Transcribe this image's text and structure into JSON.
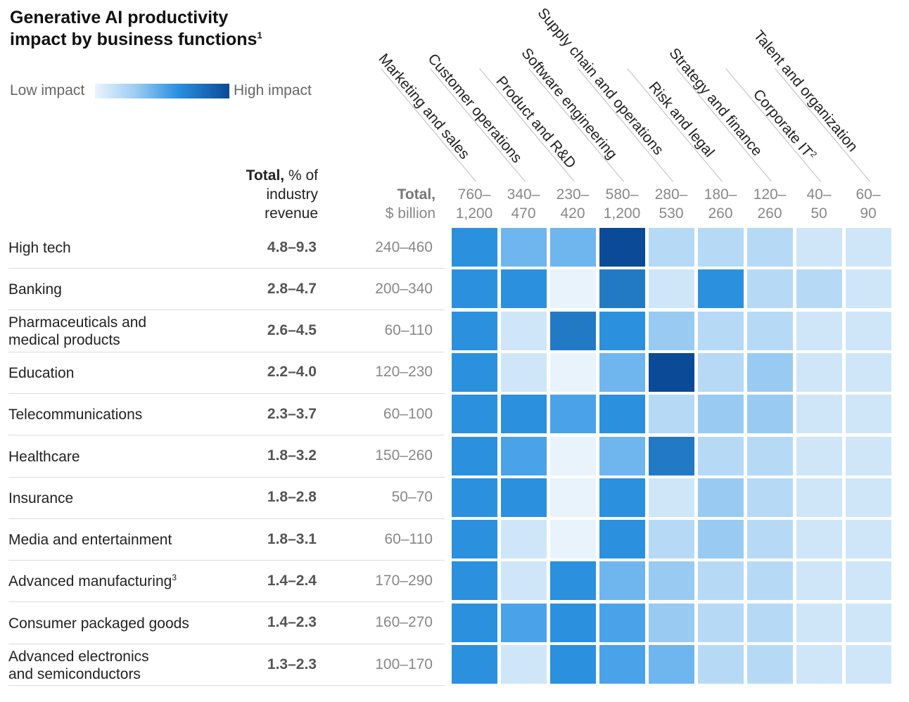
{
  "title": {
    "line1": "Generative AI productivity",
    "line2": "impact by business functions",
    "footnote": "1"
  },
  "legend": {
    "low": "Low impact",
    "high": "High impact"
  },
  "headers": {
    "pct_bold": "Total,",
    "pct_rest": "% of",
    "pct_line2": "industry",
    "pct_line3": "revenue",
    "bil_bold": "Total,",
    "bil_line2": "$ billion"
  },
  "colors": {
    "l1": "#e8f3fc",
    "l2": "#cfe6f8",
    "l3": "#b6daf5",
    "l4": "#99cbf2",
    "l5": "#6fb5ee",
    "l6": "#4aa3e8",
    "l7": "#2b90de",
    "l8": "#237ac4",
    "l9": "#0b4a96"
  },
  "chart_data": {
    "type": "heatmap",
    "title": "Generative AI productivity impact by business functions",
    "legend": [
      "Low impact",
      "High impact"
    ],
    "columns": [
      {
        "name": "Marketing and sales",
        "total": [
          "760–",
          "1,200"
        ]
      },
      {
        "name": "Customer operations",
        "total": [
          "340–",
          "470"
        ]
      },
      {
        "name": "Product and R&D",
        "total": [
          "230–",
          "420"
        ]
      },
      {
        "name": "Software engineering",
        "total": [
          "580–",
          "1,200"
        ]
      },
      {
        "name": "Supply chain and operations",
        "total": [
          "280–",
          "530"
        ]
      },
      {
        "name": "Risk and legal",
        "total": [
          "180–",
          "260"
        ]
      },
      {
        "name": "Strategy and finance",
        "total": [
          "120–",
          "260"
        ]
      },
      {
        "name": "Corporate IT",
        "sup": "2",
        "total": [
          "40–",
          "50"
        ]
      },
      {
        "name": "Talent and organization",
        "total": [
          "60–",
          "90"
        ]
      }
    ],
    "rows": [
      {
        "name": [
          "High tech"
        ],
        "pct": "4.8–9.3",
        "bil": "240–460",
        "levels": [
          7,
          5,
          5,
          9,
          3,
          3,
          3,
          2,
          2
        ]
      },
      {
        "name": [
          "Banking"
        ],
        "pct": "2.8–4.7",
        "bil": "200–340",
        "levels": [
          7,
          7,
          1,
          8,
          2,
          7,
          3,
          3,
          2
        ]
      },
      {
        "name": [
          "Pharmaceuticals and",
          "medical products"
        ],
        "pct": "2.6–4.5",
        "bil": "60–110",
        "levels": [
          7,
          2,
          8,
          7,
          4,
          3,
          3,
          2,
          2
        ]
      },
      {
        "name": [
          "Education"
        ],
        "pct": "2.2–4.0",
        "bil": "120–230",
        "levels": [
          7,
          2,
          1,
          5,
          9,
          3,
          4,
          2,
          2
        ]
      },
      {
        "name": [
          "Telecommunications"
        ],
        "pct": "2.3–3.7",
        "bil": "60–100",
        "levels": [
          7,
          7,
          6,
          7,
          3,
          4,
          4,
          2,
          2
        ]
      },
      {
        "name": [
          "Healthcare"
        ],
        "pct": "1.8–3.2",
        "bil": "150–260",
        "levels": [
          7,
          6,
          1,
          5,
          8,
          3,
          3,
          2,
          2
        ]
      },
      {
        "name": [
          "Insurance"
        ],
        "pct": "1.8–2.8",
        "bil": "50–70",
        "levels": [
          7,
          7,
          1,
          7,
          2,
          4,
          3,
          2,
          2
        ]
      },
      {
        "name": [
          "Media and entertainment"
        ],
        "pct": "1.8–3.1",
        "bil": "60–110",
        "levels": [
          7,
          2,
          1,
          7,
          3,
          4,
          3,
          2,
          2
        ]
      },
      {
        "name": [
          "Advanced manufacturing"
        ],
        "sup": "3",
        "pct": "1.4–2.4",
        "bil": "170–290",
        "levels": [
          7,
          2,
          7,
          5,
          4,
          3,
          3,
          2,
          2
        ]
      },
      {
        "name": [
          "Consumer packaged goods"
        ],
        "pct": "1.4–2.3",
        "bil": "160–270",
        "levels": [
          7,
          6,
          7,
          6,
          4,
          3,
          3,
          2,
          2
        ]
      },
      {
        "name": [
          "Advanced electronics",
          "and semiconductors"
        ],
        "pct": "1.3–2.3",
        "bil": "100–170",
        "levels": [
          7,
          2,
          7,
          6,
          5,
          3,
          3,
          2,
          2
        ]
      }
    ]
  }
}
